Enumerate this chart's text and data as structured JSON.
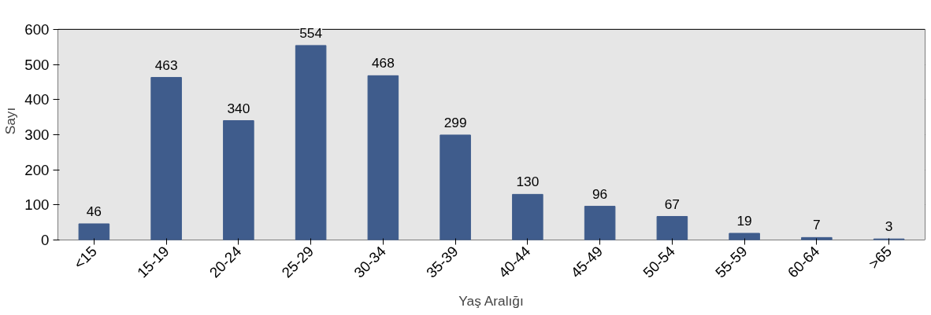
{
  "chart_data": {
    "type": "bar",
    "xlabel": "Yaş Aralığı",
    "ylabel": "Sayı",
    "categories": [
      "<15",
      "15-19",
      "20-24",
      "25-29",
      "30-34",
      "35-39",
      "40-44",
      "45-49",
      "50-54",
      "55-59",
      "60-64",
      ">65"
    ],
    "values": [
      46,
      463,
      340,
      554,
      468,
      299,
      130,
      96,
      67,
      19,
      7,
      3
    ],
    "color": "#3f5c8c",
    "ylim": [
      0,
      600
    ],
    "yticks": [
      0,
      100,
      200,
      300,
      400,
      500,
      600
    ],
    "grid": "y",
    "data_labels": true
  }
}
